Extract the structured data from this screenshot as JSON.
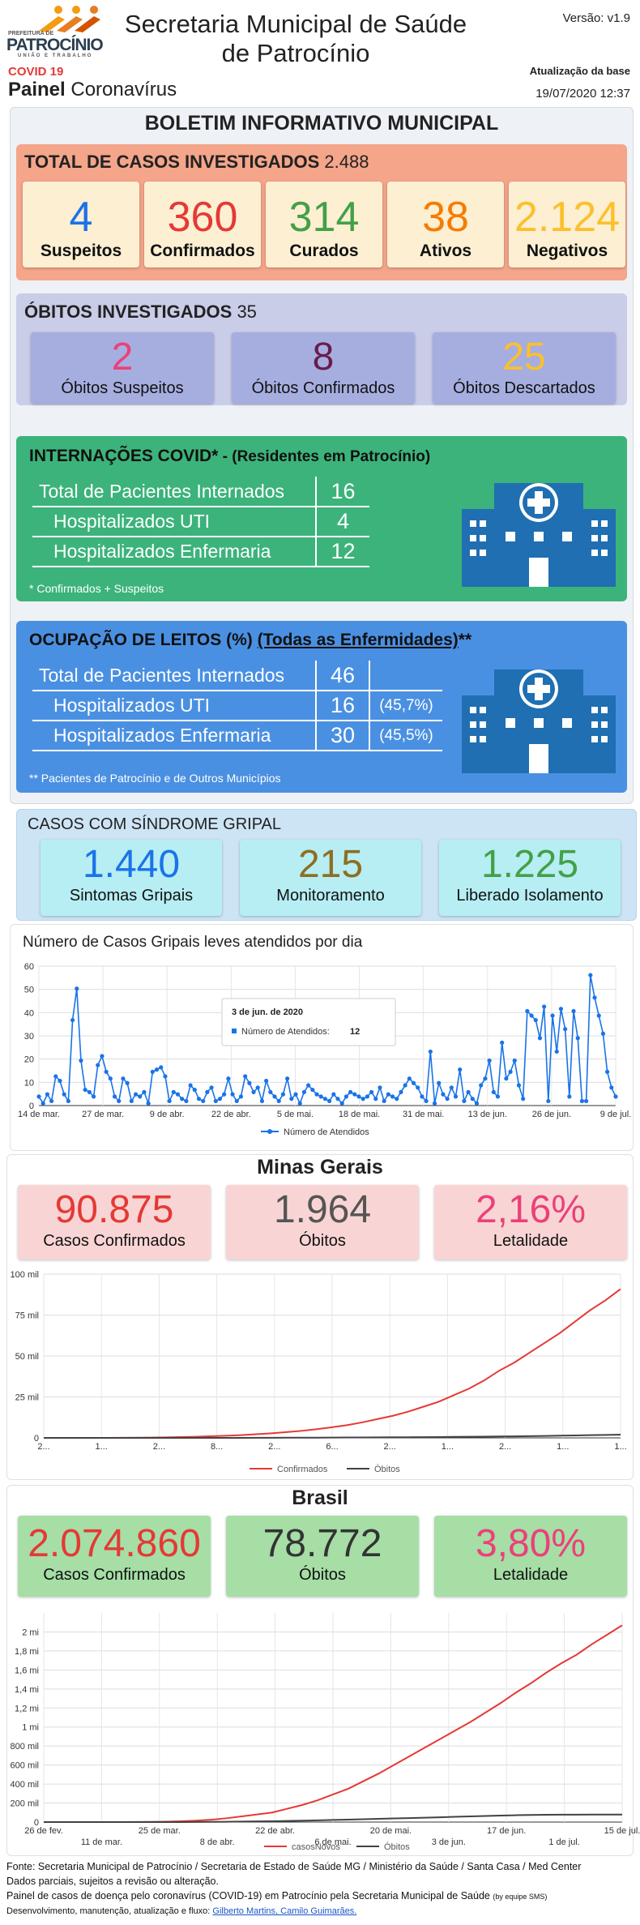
{
  "header": {
    "logo_city": "PATROCÍNIO",
    "logo_sub": "UNIÃO E TRABALHO",
    "logo_pref": "PREFEITURA DE",
    "covid": "COVID 19",
    "painel_bold": "Painel",
    "painel_rest": "Coronavírus",
    "title_line1": "Secretaria Municipal de Saúde",
    "title_line2": "de Patrocínio",
    "version": "Versão: v1.9",
    "update_label": "Atualização da base",
    "update_value": "19/07/2020 12:37"
  },
  "boletim": {
    "title": "BOLETIM INFORMATIVO MUNICIPAL"
  },
  "casos": {
    "title": "TOTAL DE CASOS INVESTIGADOS",
    "total": "2.488",
    "items": [
      {
        "value": "4",
        "label": "Suspeitos",
        "color": "#1a73e8"
      },
      {
        "value": "360",
        "label": "Confirmados",
        "color": "#e53935"
      },
      {
        "value": "314",
        "label": "Curados",
        "color": "#43a047"
      },
      {
        "value": "38",
        "label": "Ativos",
        "color": "#f57c00"
      },
      {
        "value": "2.124",
        "label": "Negativos",
        "color": "#fbc02d"
      }
    ]
  },
  "obitos": {
    "title": "ÓBITOS INVESTIGADOS",
    "total": "35",
    "items": [
      {
        "value": "2",
        "label": "Óbitos Suspeitos",
        "color": "#ec407a"
      },
      {
        "value": "8",
        "label": "Óbitos Confirmados",
        "color": "#6a1b4d"
      },
      {
        "value": "25",
        "label": "Óbitos Descartados",
        "color": "#fbc02d"
      }
    ]
  },
  "internacoes": {
    "title": "INTERNAÇÕES COVID*",
    "title_rest": " - (Residentes em Patrocínio)",
    "rows": [
      {
        "label": "Total de Pacientes Internados",
        "value": "16"
      },
      {
        "label": "Hospitalizados UTI",
        "value": "4"
      },
      {
        "label": "Hospitalizados Enfermaria",
        "value": "12"
      }
    ],
    "footnote": "* Confirmados + Suspeitos"
  },
  "leitos": {
    "title": "OCUPAÇÃO DE LEITOS (%)",
    "title_link": "(Todas as Enfermidades)",
    "title_tail": "**",
    "rows": [
      {
        "label": "Total de Pacientes Internados",
        "value": "46",
        "pct": ""
      },
      {
        "label": "Hospitalizados UTI",
        "value": "16",
        "pct": "(45,7%)"
      },
      {
        "label": "Hospitalizados Enfermaria",
        "value": "30",
        "pct": "(45,5%)"
      }
    ],
    "footnote": "** Pacientes de Patrocínio e de Outros Municípios"
  },
  "gripal": {
    "title": "CASOS COM SÍNDROME GRIPAL",
    "items": [
      {
        "value": "1.440",
        "label": "Sintomas Gripais",
        "color": "#1a73e8"
      },
      {
        "value": "215",
        "label": "Monitoramento",
        "color": "#8d6e22"
      },
      {
        "value": "1.225",
        "label": "Liberado Isolamento",
        "color": "#43a047"
      }
    ]
  },
  "mg": {
    "title": "Minas Gerais",
    "items": [
      {
        "value": "90.875",
        "label": "Casos Confirmados",
        "color": "#e53935"
      },
      {
        "value": "1.964",
        "label": "Óbitos",
        "color": "#555555"
      },
      {
        "value": "2,16%",
        "label": "Letalidade",
        "color": "#ec407a"
      }
    ]
  },
  "brasil": {
    "title": "Brasil",
    "items": [
      {
        "value": "2.074.860",
        "label": "Casos Confirmados",
        "color": "#e53935"
      },
      {
        "value": "78.772",
        "label": "Óbitos",
        "color": "#333333"
      },
      {
        "value": "3,80%",
        "label": "Letalidade",
        "color": "#ec407a"
      }
    ]
  },
  "footer": {
    "line1": "Fonte: Secretaria Municipal de Patrocínio / Secretaria de Estado de Saúde MG / Ministério da Saúde / Santa Casa / Med Center",
    "line2": "Dados parciais, sujeitos a revisão ou alteração.",
    "line3": "Painel de casos de doença pelo coronavírus (COVID-19) em Patrocínio pela Secretaria Municipal de Saúde",
    "line3_small": "(by equipe SMS)",
    "line4": "Desenvolvimento, manutenção, atualização e fluxo:",
    "line4_link": "Gilberto Martins, Camilo Guimarães."
  },
  "chart_data": [
    {
      "type": "line",
      "title": "Número de Casos Gripais leves atendidos por dia",
      "series": [
        {
          "name": "Número de Atendidos",
          "values": [
            4,
            1,
            5,
            2,
            13,
            11,
            5,
            2,
            38,
            52,
            20,
            7,
            6,
            4,
            18,
            22,
            15,
            12,
            4,
            2,
            12,
            10,
            2,
            5,
            4,
            6,
            1,
            15,
            16,
            17,
            13,
            2,
            6,
            5,
            3,
            2,
            9,
            7,
            3,
            2,
            6,
            8,
            2,
            3,
            5,
            12,
            5,
            2,
            4,
            13,
            10,
            6,
            8,
            2,
            11,
            6,
            4,
            2,
            5,
            12,
            3,
            5,
            1,
            6,
            9,
            7,
            5,
            4,
            3,
            2,
            5,
            3,
            1,
            4,
            6,
            5,
            4,
            3,
            4,
            6,
            3,
            8,
            2,
            5,
            4,
            3,
            6,
            9,
            12,
            10,
            8,
            4,
            2,
            24,
            1,
            10,
            5,
            3,
            8,
            4,
            16,
            2,
            6,
            3,
            1,
            9,
            12,
            20,
            6,
            4,
            28,
            12,
            15,
            20,
            9,
            3,
            42,
            40,
            38,
            30,
            44,
            2,
            40,
            24,
            43,
            34,
            4,
            42,
            30,
            2,
            2,
            58,
            48,
            40,
            32,
            15,
            8,
            4
          ]
        }
      ],
      "x_ticks": [
        "14 de mar.",
        "27 de mar.",
        "9 de abr.",
        "22 de abr.",
        "5 de mai.",
        "18 de mai.",
        "31 de mai.",
        "13 de jun.",
        "26 de jun.",
        "9 de jul."
      ],
      "y_ticks": [
        "0",
        "10",
        "20",
        "30",
        "40",
        "50",
        "60"
      ],
      "ylim": [
        0,
        62
      ],
      "tooltip_date": "3 de jun. de 2020",
      "tooltip_label": "Número de Atendidos:",
      "tooltip_value": "12",
      "legend": "Número de Atendidos",
      "color": "#1a73e8"
    },
    {
      "type": "line",
      "series": [
        {
          "name": "Confirmados",
          "color": "#e53935",
          "values": [
            0,
            0,
            0,
            0,
            0,
            0.05,
            0.1,
            0.2,
            0.3,
            0.5,
            0.7,
            1,
            1.3,
            1.7,
            2.2,
            2.8,
            3.5,
            4.3,
            5.3,
            6.5,
            7.8,
            9.5,
            11.5,
            13.5,
            16,
            19,
            22,
            26,
            30,
            35,
            41,
            46,
            52,
            58,
            64,
            71,
            78,
            84,
            90.9
          ]
        },
        {
          "name": "Óbitos",
          "color": "#424242",
          "values": [
            0,
            0,
            0,
            0,
            0,
            0,
            0,
            0,
            0,
            0,
            0,
            0,
            0.02,
            0.03,
            0.05,
            0.07,
            0.1,
            0.12,
            0.15,
            0.18,
            0.22,
            0.26,
            0.3,
            0.35,
            0.4,
            0.46,
            0.52,
            0.6,
            0.68,
            0.76,
            0.85,
            0.95,
            1.05,
            1.2,
            1.35,
            1.5,
            1.65,
            1.8,
            1.96
          ]
        }
      ],
      "y_ticks": [
        "0",
        "25 mil",
        "50 mil",
        "75 mil",
        "100 mil"
      ],
      "ylim": [
        0,
        100
      ],
      "x_ticks": [
        "2...",
        "1...",
        "2...",
        "8...",
        "2...",
        "6...",
        "2...",
        "1...",
        "2...",
        "1...",
        "1..."
      ],
      "legend": [
        "Confirmados",
        "Óbitos"
      ]
    },
    {
      "type": "line",
      "series": [
        {
          "name": "casosNovos",
          "color": "#e53935",
          "values": [
            0,
            0,
            0,
            0,
            0,
            0,
            0.001,
            0.002,
            0.004,
            0.008,
            0.015,
            0.025,
            0.04,
            0.06,
            0.08,
            0.1,
            0.14,
            0.18,
            0.23,
            0.29,
            0.35,
            0.43,
            0.51,
            0.6,
            0.69,
            0.78,
            0.87,
            0.96,
            1.05,
            1.15,
            1.25,
            1.36,
            1.46,
            1.57,
            1.67,
            1.76,
            1.87,
            1.97,
            2.07
          ]
        },
        {
          "name": "Óbitos",
          "color": "#424242",
          "values": [
            0,
            0,
            0,
            0,
            0,
            0,
            0,
            0,
            0,
            0,
            0.001,
            0.002,
            0.003,
            0.005,
            0.007,
            0.009,
            0.012,
            0.015,
            0.018,
            0.022,
            0.026,
            0.03,
            0.034,
            0.038,
            0.042,
            0.046,
            0.05,
            0.055,
            0.06,
            0.064,
            0.068,
            0.072,
            0.075,
            0.077,
            0.078,
            0.078,
            0.079,
            0.079,
            0.079
          ]
        }
      ],
      "y_ticks": [
        "0",
        "200 mil",
        "400 mil",
        "600 mil",
        "800 mil",
        "1 mi",
        "1,2 mi",
        "1,4 mi",
        "1,6 mi",
        "1,8 mi",
        "2 mi"
      ],
      "ylim": [
        0,
        2.2
      ],
      "x_ticks": [
        "26 de fev.",
        "11 de mar.",
        "25 de mar.",
        "8 de abr.",
        "22 de abr.",
        "6 de mai.",
        "20 de mai.",
        "3 de jun.",
        "17 de jun.",
        "1 de jul.",
        "15 de jul."
      ],
      "legend": [
        "casosNovos",
        "Óbitos"
      ]
    }
  ]
}
